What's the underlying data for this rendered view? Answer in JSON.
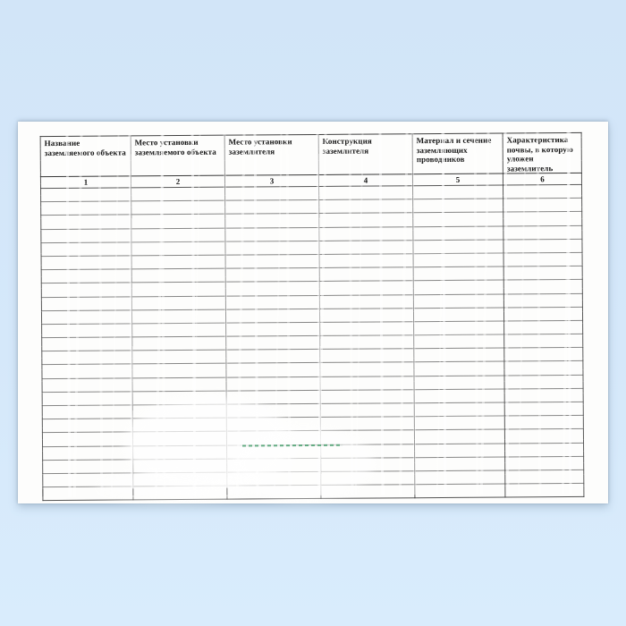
{
  "document": {
    "kind": "scanned-form-page",
    "table": {
      "columns": [
        {
          "number": "1",
          "header": "Название заземляемого объекта"
        },
        {
          "number": "2",
          "header": "Место установки заземляемого объекта"
        },
        {
          "number": "3",
          "header": "Место установки заземлителя"
        },
        {
          "number": "4",
          "header": "Конструкция заземлителя"
        },
        {
          "number": "5",
          "header": "Материал и сечение заземляющих проводников"
        },
        {
          "number": "6",
          "header": "Характеристика почвы, в которую уложен заземлитель"
        }
      ],
      "empty_row_count": 23
    }
  },
  "colors": {
    "background_top": "#d2e5f8",
    "background_bottom": "#d9ecfc",
    "page_color": "#fdfdfc",
    "line_color": "#3f3f3f",
    "text_color": "#141414",
    "artifact_green": "#4a9e6e"
  }
}
